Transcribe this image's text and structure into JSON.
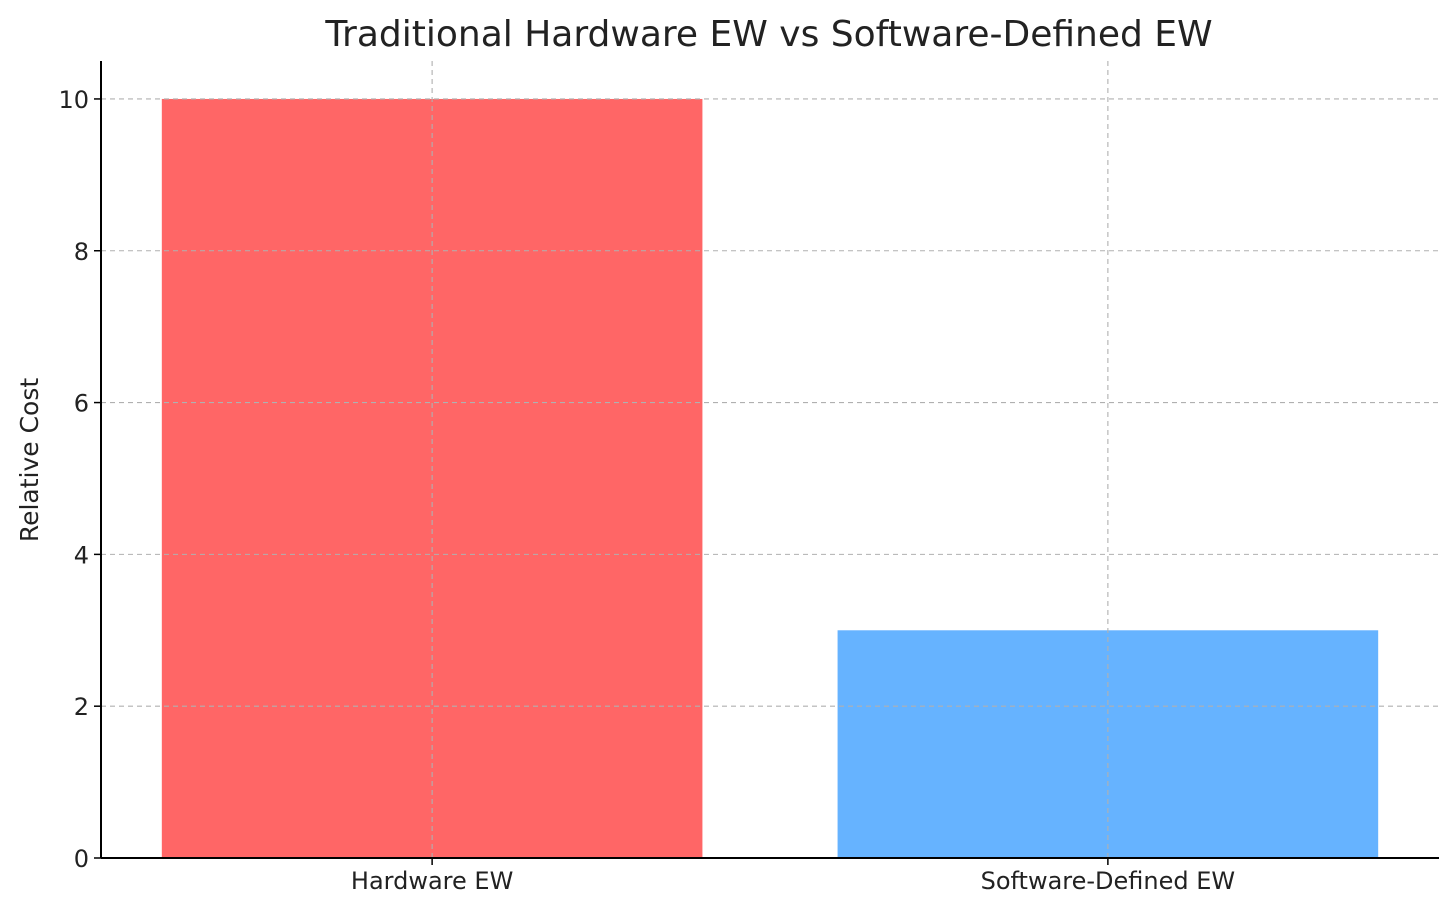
{
  "chart_data": {
    "type": "bar",
    "title": "Traditional Hardware EW vs Software-Defined EW",
    "xlabel": "",
    "ylabel": "Relative Cost",
    "categories": [
      "Hardware EW",
      "Software-Defined EW"
    ],
    "values": [
      10,
      3
    ],
    "colors": [
      "#ff6666",
      "#66b3ff"
    ],
    "ylim": [
      0,
      10.5
    ],
    "yticks": [
      0,
      2,
      4,
      6,
      8,
      10
    ],
    "grid": true,
    "legend": "none"
  }
}
